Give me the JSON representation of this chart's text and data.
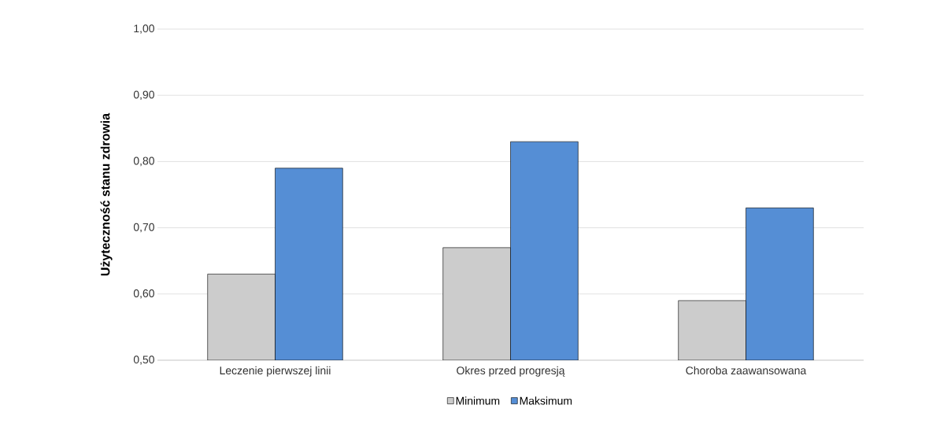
{
  "chart_data": {
    "type": "bar",
    "ylabel": "Użyteczność stanu zdrowia",
    "categories": [
      "Leczenie pierwszej linii",
      "Okres przed progresją",
      "Choroba zaawansowana"
    ],
    "series": [
      {
        "name": "Minimum",
        "color": "#cccccc",
        "values": [
          0.63,
          0.67,
          0.59
        ]
      },
      {
        "name": "Maksimum",
        "color": "#558ed5",
        "values": [
          0.79,
          0.83,
          0.73
        ]
      }
    ],
    "ylim": [
      0.5,
      1.0
    ],
    "yticks": [
      {
        "value": 0.5,
        "label": "0,50"
      },
      {
        "value": 0.6,
        "label": "0,60"
      },
      {
        "value": 0.7,
        "label": "0,70"
      },
      {
        "value": 0.8,
        "label": "0,80"
      },
      {
        "value": 0.9,
        "label": "0,90"
      },
      {
        "value": 1.0,
        "label": "1,00"
      }
    ],
    "grid": "y",
    "legend": "bottom"
  }
}
